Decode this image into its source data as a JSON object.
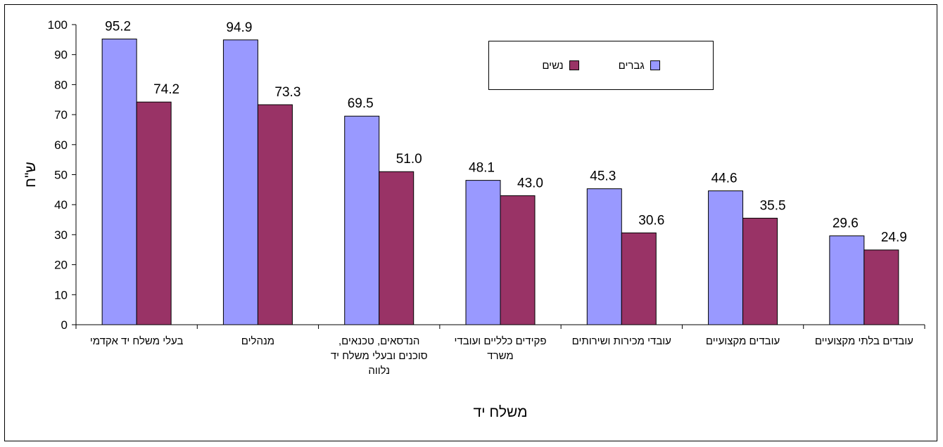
{
  "chart_data": {
    "type": "bar",
    "ylabel": "ש\"ח",
    "xlabel": "משלח יד",
    "ylim": [
      0,
      100
    ],
    "yticks": [
      0,
      10,
      20,
      30,
      40,
      50,
      60,
      70,
      80,
      90,
      100
    ],
    "categories": [
      [
        "בעלי משלח יד אקדמי"
      ],
      [
        "מנהלים"
      ],
      [
        "הנדסאים, טכנאים,",
        "סוכנים ובעלי משלח יד",
        "נלווה"
      ],
      [
        "פקידים כלליים ועובדי",
        "משרד"
      ],
      [
        "עובדי מכירות ושירותים"
      ],
      [
        "עובדים מקצועיים"
      ],
      [
        "עובדים בלתי מקצועיים"
      ]
    ],
    "series": [
      {
        "name": "גברים",
        "color": "#9999ff",
        "values": [
          95.2,
          94.9,
          69.5,
          48.1,
          45.3,
          44.6,
          29.6
        ]
      },
      {
        "name": "נשים",
        "color": "#993366",
        "values": [
          74.2,
          73.3,
          51.0,
          43.0,
          30.6,
          35.5,
          24.9
        ]
      }
    ],
    "value_labels": [
      [
        "95.2",
        "94.9",
        "69.5",
        "48.1",
        "45.3",
        "44.6",
        "29.6"
      ],
      [
        "74.2",
        "73.3",
        "51.0",
        "43.0",
        "30.6",
        "35.5",
        "24.9"
      ]
    ],
    "legend_position": "top-right",
    "grid": false
  },
  "legend": {
    "men_label": "גברים",
    "women_label": "נשים"
  }
}
